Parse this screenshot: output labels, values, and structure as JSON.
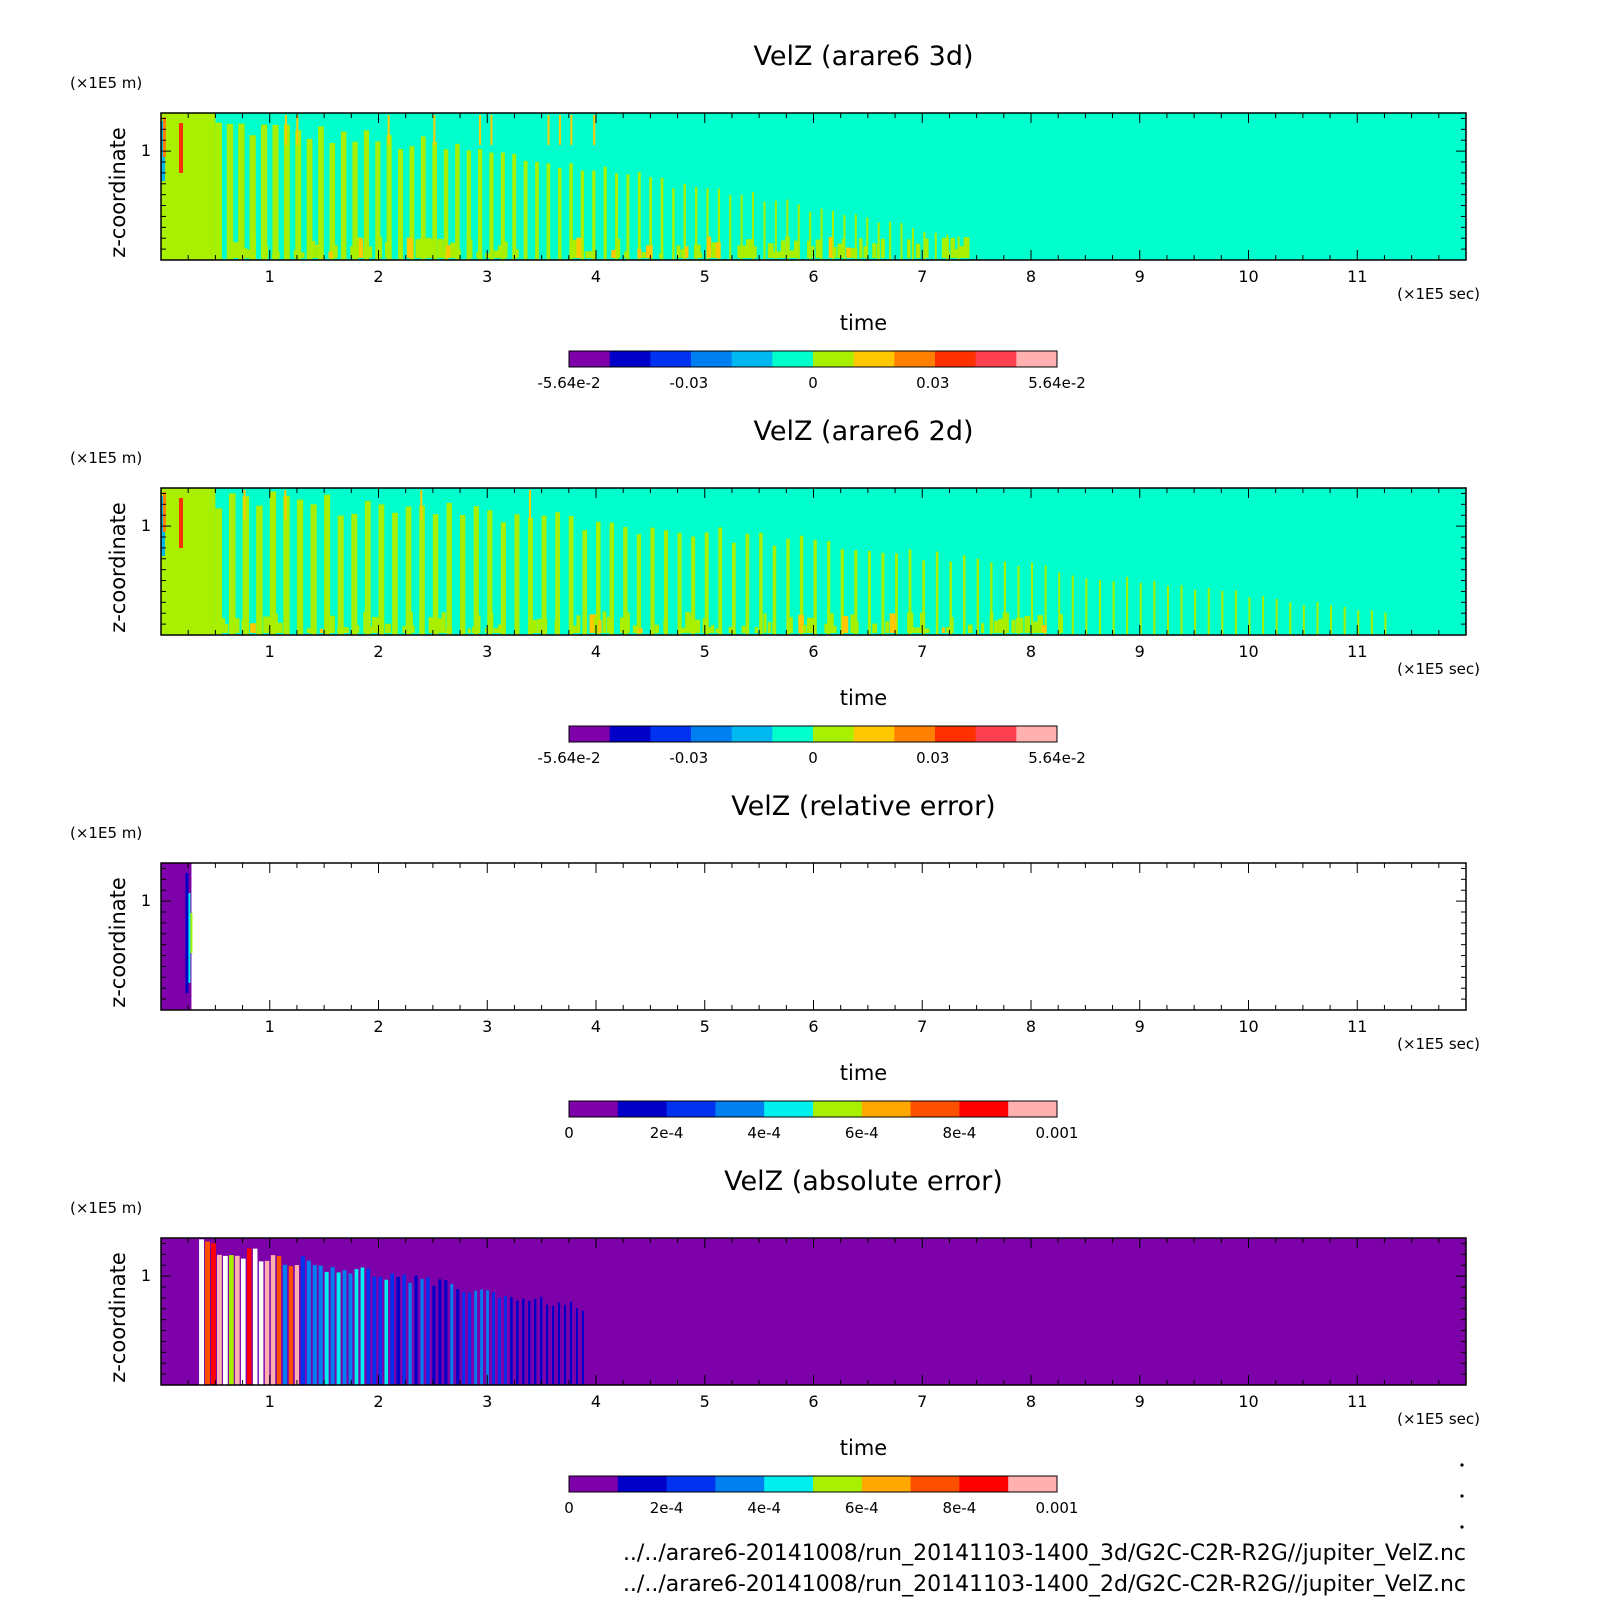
{
  "chart_data": [
    {
      "type": "heatmap",
      "field": "velz_3d",
      "title": "VelZ (arare6 3d)",
      "xlabel": "time",
      "ylabel": "z-coordinate",
      "x_unit": "(×1E5 sec)",
      "y_unit": "(×1E5 m)",
      "xlim": [
        0,
        12
      ],
      "ylim": [
        0,
        1.35
      ],
      "x_ticks": [
        1,
        2,
        3,
        4,
        5,
        6,
        7,
        8,
        9,
        10,
        11
      ],
      "y_ticks": [
        1
      ],
      "decay_time": 7.4,
      "colorbar": {
        "labels": [
          "-5.64e-2",
          "-0.03",
          "0",
          "0.03",
          "5.64e-2"
        ],
        "label_positions": [
          0,
          2.7,
          5.5,
          8.2,
          11
        ],
        "colors": [
          "#7d00a8",
          "#0000c8",
          "#0032f0",
          "#0080f0",
          "#00b8f0",
          "#00ffcc",
          "#a8f000",
          "#ffc800",
          "#ff8000",
          "#ff3000",
          "#ff4050",
          "#ffb0b0"
        ]
      }
    },
    {
      "type": "heatmap",
      "field": "velz_2d",
      "title": "VelZ (arare6 2d)",
      "xlabel": "time",
      "ylabel": "z-coordinate",
      "x_unit": "(×1E5 sec)",
      "y_unit": "(×1E5 m)",
      "xlim": [
        0,
        12
      ],
      "ylim": [
        0,
        1.35
      ],
      "x_ticks": [
        1,
        2,
        3,
        4,
        5,
        6,
        7,
        8,
        9,
        10,
        11
      ],
      "y_ticks": [
        1
      ],
      "decay_time": 11.3,
      "colorbar": {
        "labels": [
          "-5.64e-2",
          "-0.03",
          "0",
          "0.03",
          "5.64e-2"
        ],
        "label_positions": [
          0,
          2.7,
          5.5,
          8.2,
          11
        ],
        "colors": [
          "#7d00a8",
          "#0000c8",
          "#0032f0",
          "#0080f0",
          "#00b8f0",
          "#00ffcc",
          "#a8f000",
          "#ffc800",
          "#ff8000",
          "#ff3000",
          "#ff4050",
          "#ffb0b0"
        ]
      }
    },
    {
      "type": "heatmap",
      "field": "relative_error",
      "title": "VelZ (relative error)",
      "xlabel": "time",
      "ylabel": "z-coordinate",
      "x_unit": "(×1E5 sec)",
      "y_unit": "(×1E5 m)",
      "xlim": [
        0,
        12
      ],
      "ylim": [
        0,
        1.35
      ],
      "x_ticks": [
        1,
        2,
        3,
        4,
        5,
        6,
        7,
        8,
        9,
        10,
        11
      ],
      "y_ticks": [
        1
      ],
      "filled_until": 0.28,
      "colorbar": {
        "labels": [
          "0",
          "2e-4",
          "4e-4",
          "6e-4",
          "8e-4",
          "0.001"
        ],
        "label_positions": [
          0,
          2,
          4,
          6,
          8,
          10
        ],
        "colors": [
          "#7d00a8",
          "#0000c8",
          "#0032f0",
          "#0080f0",
          "#00f0f0",
          "#a8f000",
          "#ffa800",
          "#ff5000",
          "#ff0000",
          "#ffb0b0"
        ]
      }
    },
    {
      "type": "heatmap",
      "field": "absolute_error",
      "title": "VelZ (absolute error)",
      "xlabel": "time",
      "ylabel": "z-coordinate",
      "x_unit": "(×1E5 sec)",
      "y_unit": "(×1E5 m)",
      "xlim": [
        0,
        12
      ],
      "ylim": [
        0,
        1.35
      ],
      "x_ticks": [
        1,
        2,
        3,
        4,
        5,
        6,
        7,
        8,
        9,
        10,
        11
      ],
      "y_ticks": [
        1
      ],
      "active_range": [
        0.35,
        3.9
      ],
      "colorbar": {
        "labels": [
          "0",
          "2e-4",
          "4e-4",
          "6e-4",
          "8e-4",
          "0.001"
        ],
        "label_positions": [
          0,
          2,
          4,
          6,
          8,
          10
        ],
        "colors": [
          "#7d00a8",
          "#0000c8",
          "#0032f0",
          "#0080f0",
          "#00f0f0",
          "#a8f000",
          "#ffa800",
          "#ff5000",
          "#ff0000",
          "#ffb0b0"
        ]
      }
    }
  ],
  "footer": {
    "line1": "../../arare6-20141008/run_20141103-1400_3d/G2C-C2R-R2G//jupiter_VelZ.nc",
    "line2": "../../arare6-20141008/run_20141103-1400_2d/G2C-C2R-R2G//jupiter_VelZ.nc"
  }
}
